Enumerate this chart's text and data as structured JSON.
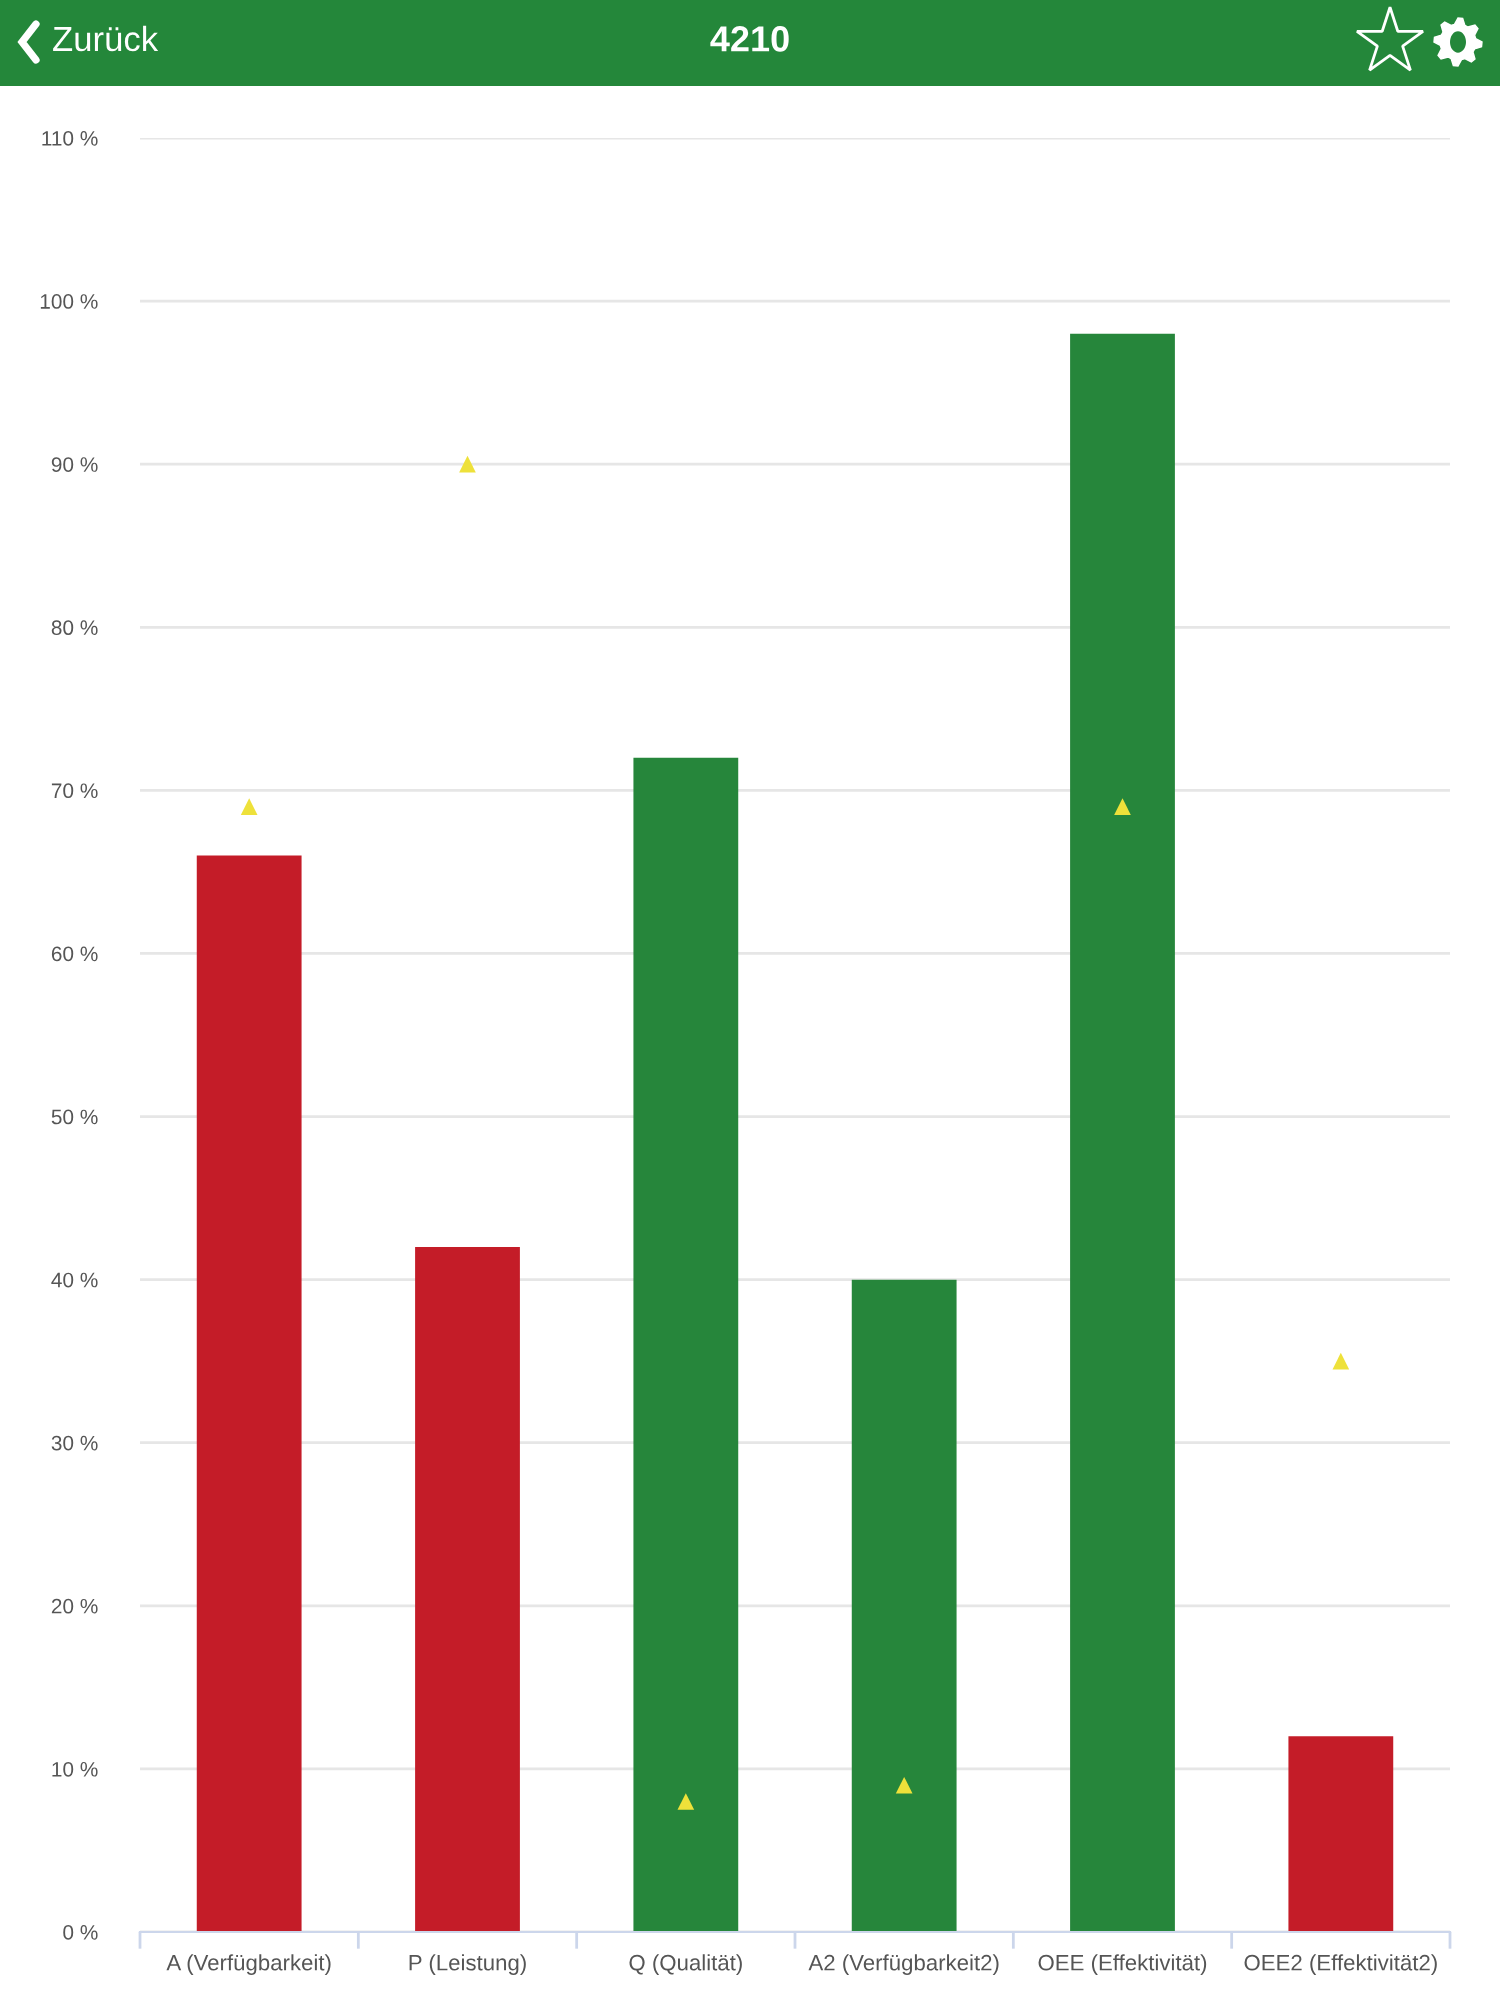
{
  "chart_data": {
    "type": "bar",
    "title": "4210",
    "annotations": [
      "Zurück"
    ],
    "categories": [
      "A (Verfügbarkeit)",
      "P (Leistung)",
      "Q (Qualität)",
      "A2 (Verfügbarkeit2)",
      "OEE (Effektivität)",
      "OEE2 (Effektivität2)"
    ],
    "series": [
      {
        "colors": [
          "#c41c28",
          "#c41c28",
          "#26863b",
          "#26863b",
          "#26863b",
          "#c41c28"
        ],
        "values": [
          66,
          42,
          72,
          40,
          98,
          12
        ]
      },
      {
        "type": "scatter",
        "color": "#eee13a",
        "marker": "triangle",
        "x": [
          "A (Verfügbarkeit)",
          "P (Leistung)",
          "Q (Qualität)",
          "A2 (Verfügbarkeit2)",
          "OEE (Effektivität)",
          "OEE2 (Effektivität2)"
        ],
        "values": [
          69,
          90,
          8,
          9,
          69,
          35
        ]
      }
    ],
    "ylim": [
      0,
      110
    ],
    "yticks": [
      {
        "value": 0,
        "label": "0 %"
      },
      {
        "value": 10,
        "label": "10 %"
      },
      {
        "value": 20,
        "label": "20 %"
      },
      {
        "value": 30,
        "label": "30 %"
      },
      {
        "value": 40,
        "label": "40 %"
      },
      {
        "value": 50,
        "label": "50 %"
      },
      {
        "value": 60,
        "label": "60 %"
      },
      {
        "value": 70,
        "label": "70 %"
      },
      {
        "value": 80,
        "label": "80 %"
      },
      {
        "value": 90,
        "label": "90 %"
      },
      {
        "value": 100,
        "label": "100 %"
      },
      {
        "value": 110,
        "label": "110 %"
      }
    ],
    "grid": "y"
  }
}
